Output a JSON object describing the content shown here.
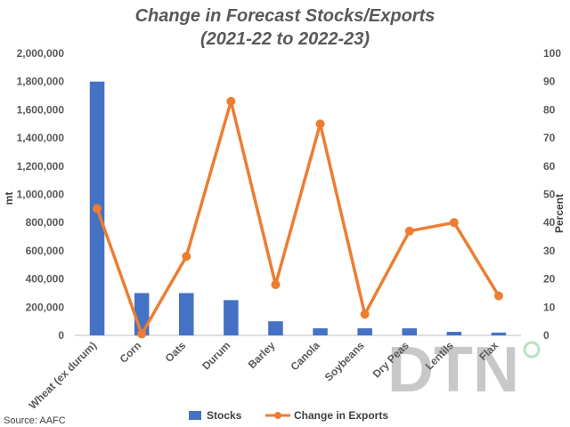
{
  "chart_data": {
    "type": "bar",
    "title_line1": "Change in Forecast Stocks/Exports",
    "title_line2": "(2021-22 to 2022-23)",
    "categories": [
      "Wheat (ex durum)",
      "Corn",
      "Oats",
      "Durum",
      "Barley",
      "Canola",
      "Soybeans",
      "Dry Peas",
      "Lentils",
      "Flax"
    ],
    "series": [
      {
        "name": "Stocks",
        "type": "bar",
        "axis": "left",
        "color": "#4472C4",
        "values": [
          1800000,
          300000,
          300000,
          250000,
          100000,
          50000,
          50000,
          50000,
          25000,
          20000
        ]
      },
      {
        "name": "Change in Exports",
        "type": "line",
        "axis": "right",
        "color": "#ED7D31",
        "values": [
          45,
          0.5,
          28,
          83,
          18,
          75,
          7.5,
          37,
          40,
          14
        ]
      }
    ],
    "ylabel_left": "mt",
    "ylabel_right": "Percent",
    "ylim_left": [
      0,
      2000000
    ],
    "ylim_right": [
      0,
      100
    ],
    "yticks_left": [
      "0",
      "200,000",
      "400,000",
      "600,000",
      "800,000",
      "1,000,000",
      "1,200,000",
      "1,400,000",
      "1,600,000",
      "1,800,000",
      "2,000,000"
    ],
    "yticks_right": [
      "0",
      "10",
      "20",
      "30",
      "40",
      "50",
      "60",
      "70",
      "80",
      "90",
      "100"
    ],
    "grid": false,
    "legend_position": "bottom",
    "source": "Source: AAFC",
    "watermark": "DTN"
  }
}
